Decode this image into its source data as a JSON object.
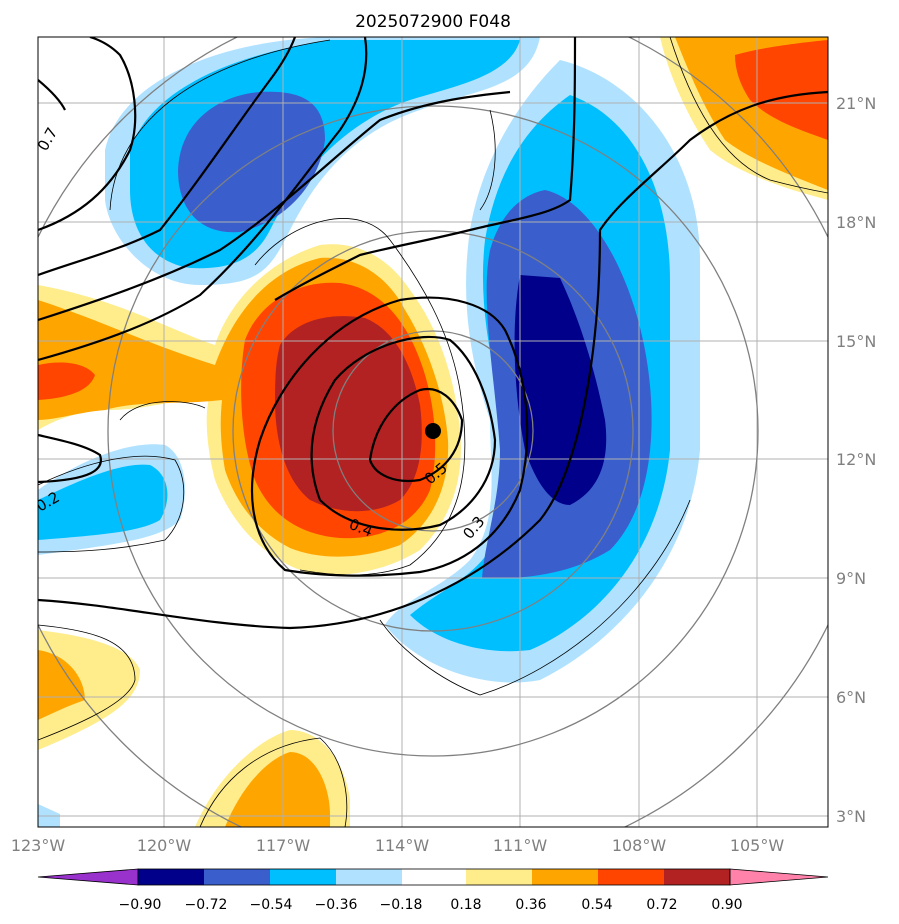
{
  "chart_data": {
    "type": "contour",
    "title": "2025072900 F048",
    "x_ticks": [
      "123°W",
      "120°W",
      "117°W",
      "114°W",
      "111°W",
      "108°W",
      "105°W"
    ],
    "x_values": [
      -123,
      -120,
      -117,
      -114,
      -111,
      -108,
      -105
    ],
    "y_ticks": [
      "21°N",
      "18°N",
      "15°N",
      "12°N",
      "9°N",
      "6°N",
      "3°N"
    ],
    "y_values": [
      21,
      18,
      15,
      12,
      9,
      6,
      3
    ],
    "xlim": [
      -123,
      -103
    ],
    "ylim": [
      2.75,
      22.75
    ],
    "grid": true,
    "colorbar": {
      "levels": [
        "−0.90",
        "−0.72",
        "−0.54",
        "−0.36",
        "−0.18",
        "0.18",
        "0.36",
        "0.54",
        "0.72",
        "0.90"
      ],
      "colors": [
        "#9932cc",
        "#00008b",
        "#3a5fcd",
        "#00bfff",
        "#b0e2ff",
        "#ffffff",
        "#ffec8b",
        "#ffa500",
        "#ff4500",
        "#b22222",
        "#ff82ab"
      ],
      "extend": "both"
    },
    "line_contour_labels": [
      "0.7",
      "0.2",
      "0.5",
      "0.4",
      "0.3"
    ],
    "center_marker": {
      "lon": -113.3,
      "lat": 12.7
    }
  }
}
